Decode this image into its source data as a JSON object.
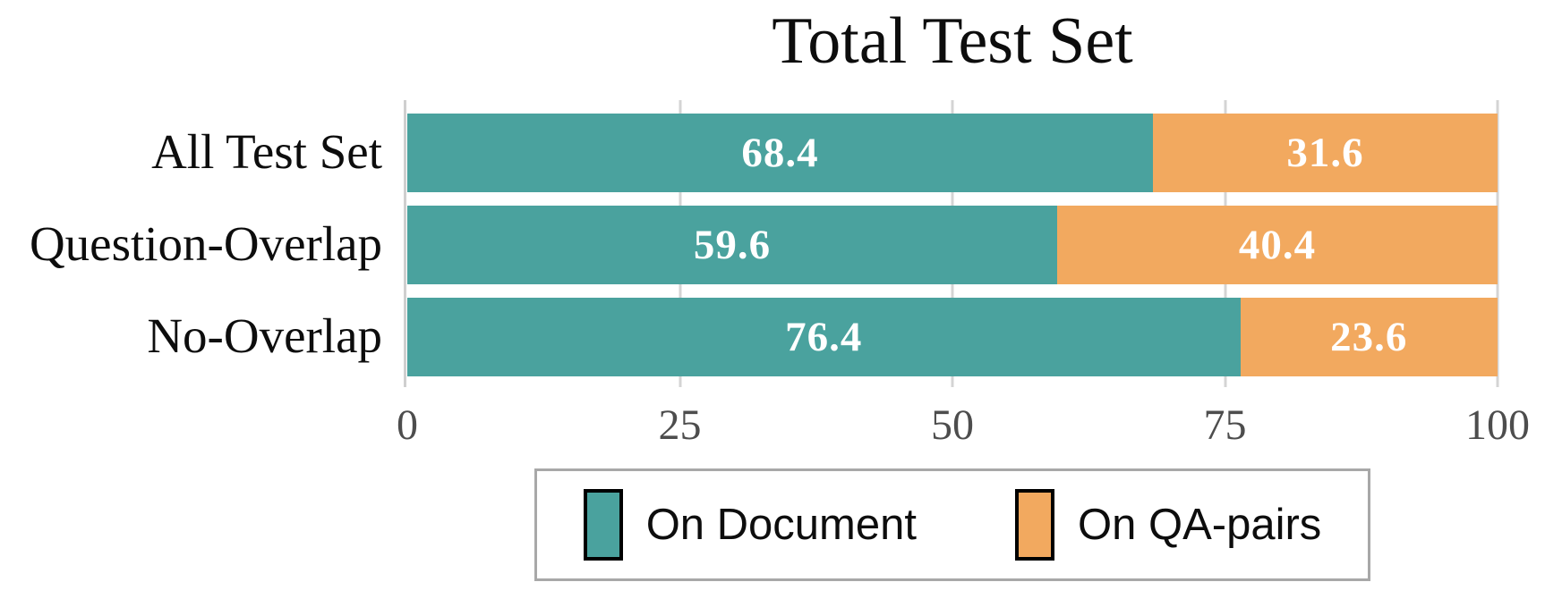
{
  "chart_data": {
    "type": "bar",
    "orientation": "horizontal",
    "stacked": true,
    "title": "Total Test Set",
    "categories": [
      "All Test Set",
      "Question-Overlap",
      "No-Overlap"
    ],
    "series": [
      {
        "name": "On Document",
        "color": "#4aa29e",
        "values": [
          68.4,
          59.6,
          76.4
        ]
      },
      {
        "name": "On QA-pairs",
        "color": "#f2a95f",
        "values": [
          31.6,
          40.4,
          23.6
        ]
      }
    ],
    "xlim": [
      0,
      100
    ],
    "xticks": [
      0,
      25,
      50,
      75,
      100
    ],
    "grid": true,
    "legend_position": "bottom",
    "bar_label_color": "#ffffff",
    "bar_labels": [
      [
        "68.4",
        "31.6"
      ],
      [
        "59.6",
        "40.4"
      ],
      [
        "76.4",
        "23.6"
      ]
    ],
    "xtick_labels": [
      "0",
      "25",
      "50",
      "75",
      "100"
    ]
  },
  "colors": {
    "axis_line": "#cfcfcf",
    "gridline": "#d4d4d4",
    "tick_label": "#4d4d4d",
    "legend_border": "#a8a8a8",
    "swatch_border": "#000000"
  }
}
